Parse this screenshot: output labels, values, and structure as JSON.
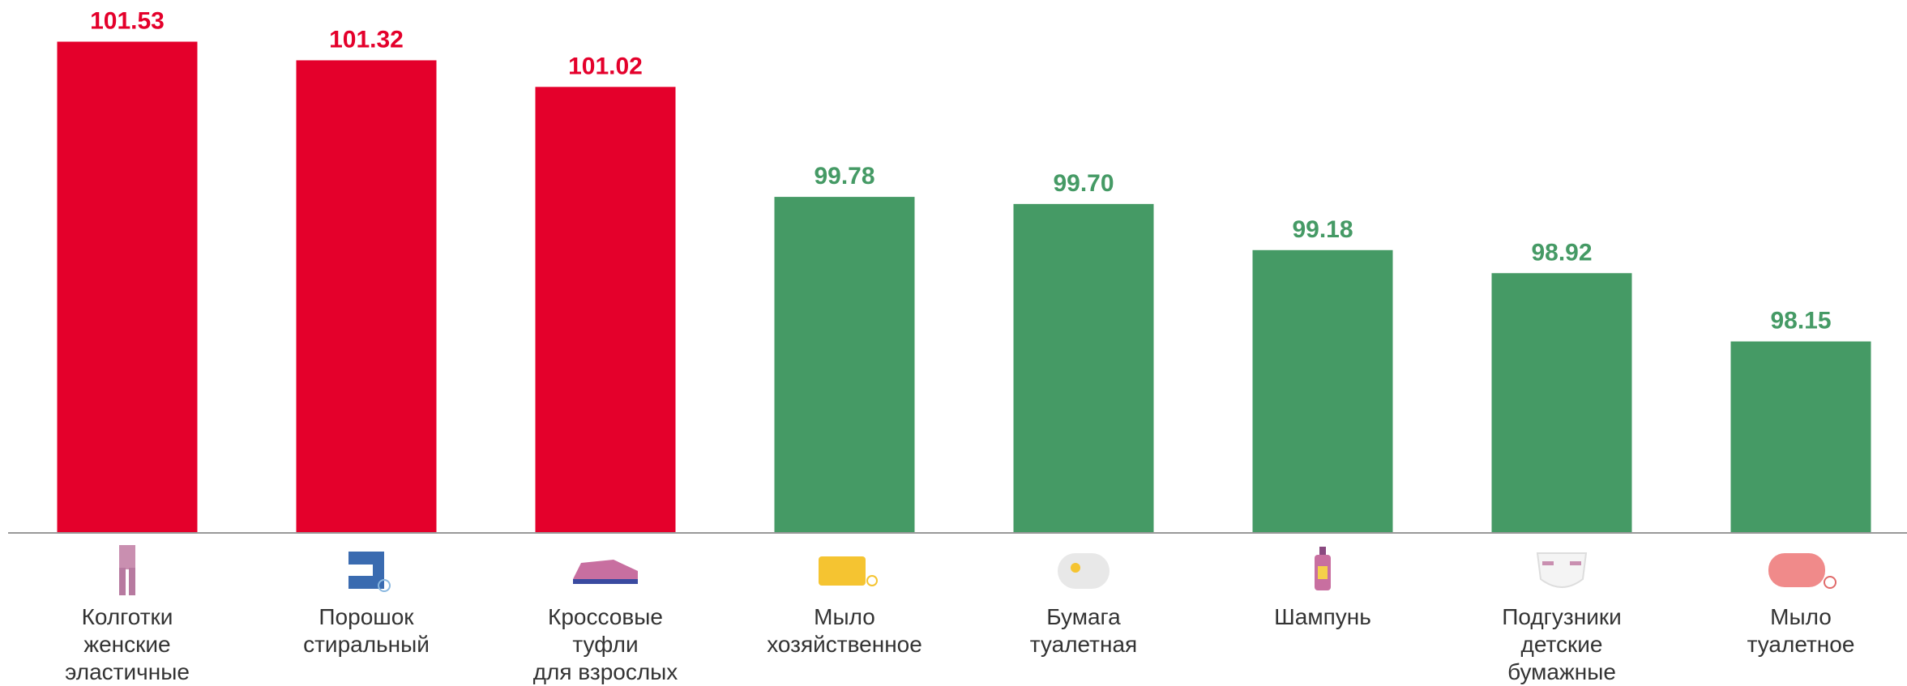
{
  "chart_data": {
    "type": "bar",
    "categories": [
      "Колготки\nженские\nэластичные",
      "Порошок\nстиральный",
      "Кроссовые\nтуфли\nдля взрослых",
      "Мыло\nхозяйственное",
      "Бумага\nтуалетная",
      "Шампунь",
      "Подгузники\nдетские\nбумажные",
      "Мыло\nтуалетное"
    ],
    "values": [
      101.53,
      101.32,
      101.02,
      99.78,
      99.7,
      99.18,
      98.92,
      98.15
    ],
    "value_labels": [
      "101.53",
      "101.32",
      "101.02",
      "99.78",
      "99.70",
      "99.18",
      "98.92",
      "98.15"
    ],
    "colors": [
      "#e4002b",
      "#e4002b",
      "#e4002b",
      "#459a65",
      "#459a65",
      "#459a65",
      "#459a65",
      "#459a65"
    ],
    "ylim": [
      96,
      102
    ]
  }
}
